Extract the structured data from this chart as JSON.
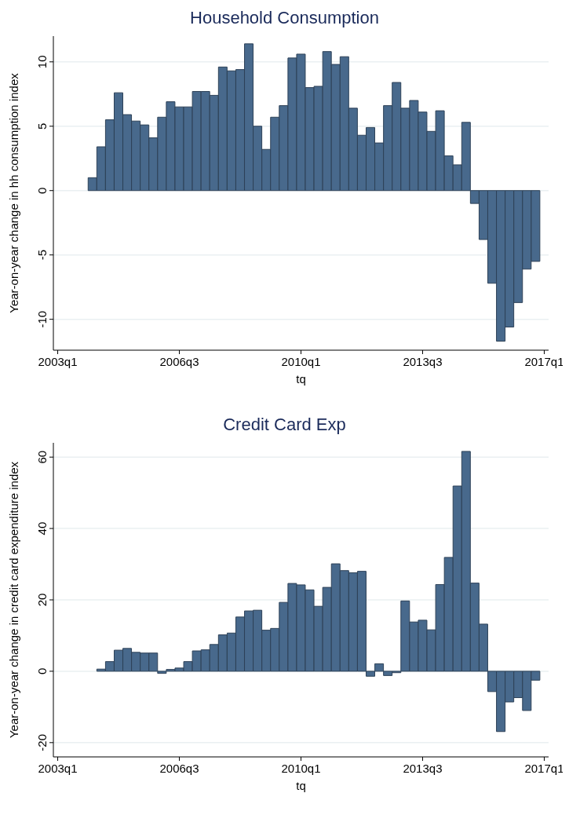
{
  "chart_data": [
    {
      "type": "bar",
      "title": "Household Consumption",
      "xlabel": "tq",
      "ylabel": "Year-on-year change in hh consumption index",
      "categories": [
        "2003q1",
        null,
        null,
        null,
        null,
        null,
        null,
        null,
        null,
        null,
        null,
        null,
        null,
        null,
        "2006q3",
        null,
        null,
        null,
        null,
        null,
        null,
        null,
        null,
        null,
        null,
        null,
        null,
        null,
        "2010q1",
        null,
        null,
        null,
        null,
        null,
        null,
        null,
        null,
        null,
        null,
        null,
        null,
        null,
        "2013q3",
        null,
        null,
        null,
        null,
        null,
        null,
        null,
        null,
        null,
        null,
        null,
        null,
        null,
        "2017q1"
      ],
      "series": [
        {
          "color": "#48698c",
          "values": [
            null,
            null,
            null,
            null,
            1.0,
            3.4,
            5.5,
            7.6,
            5.9,
            5.4,
            5.1,
            4.1,
            5.7,
            6.9,
            6.5,
            6.5,
            7.7,
            7.7,
            7.4,
            9.6,
            9.3,
            9.4,
            11.4,
            5.0,
            3.2,
            5.7,
            6.6,
            10.3,
            10.6,
            8.0,
            8.1,
            10.8,
            9.8,
            10.4,
            6.4,
            4.3,
            4.9,
            3.7,
            6.6,
            8.4,
            6.4,
            7.0,
            6.1,
            4.6,
            6.2,
            2.7,
            2.0,
            5.3,
            -1.0,
            -3.8,
            -7.2,
            -11.7,
            -10.6,
            -8.7,
            -6.1,
            -5.5,
            null
          ]
        }
      ],
      "ylim": [
        -12.4,
        12
      ],
      "yticks": [
        -10,
        -5,
        0,
        5,
        10
      ],
      "grid": "y",
      "legend": false
    },
    {
      "type": "bar",
      "title": "Credit Card Exp",
      "xlabel": "tq",
      "ylabel": "Year-on-year change in credit card expenditure index",
      "categories": [
        "2003q1",
        null,
        null,
        null,
        null,
        null,
        null,
        null,
        null,
        null,
        null,
        null,
        null,
        null,
        "2006q3",
        null,
        null,
        null,
        null,
        null,
        null,
        null,
        null,
        null,
        null,
        null,
        null,
        null,
        "2010q1",
        null,
        null,
        null,
        null,
        null,
        null,
        null,
        null,
        null,
        null,
        null,
        null,
        null,
        "2013q3",
        null,
        null,
        null,
        null,
        null,
        null,
        null,
        null,
        null,
        null,
        null,
        null,
        null,
        "2017q1"
      ],
      "series": [
        {
          "color": "#48698c",
          "values": [
            null,
            null,
            null,
            null,
            null,
            0.6,
            2.7,
            5.9,
            6.4,
            5.3,
            5.1,
            5.1,
            -0.6,
            0.5,
            0.9,
            2.7,
            5.7,
            6.0,
            7.5,
            10.2,
            10.7,
            15.2,
            16.9,
            17.1,
            11.5,
            12.0,
            19.3,
            24.6,
            24.2,
            22.8,
            18.2,
            23.5,
            30.1,
            28.2,
            27.6,
            28.0,
            -1.4,
            2.1,
            -1.2,
            -0.4,
            19.7,
            13.8,
            14.3,
            11.6,
            24.3,
            31.9,
            51.9,
            61.6,
            24.7,
            13.2,
            -5.7,
            -16.9,
            -8.6,
            -7.4,
            -11.0,
            -2.5,
            null
          ]
        }
      ],
      "ylim": [
        -24,
        64
      ],
      "yticks": [
        -20,
        0,
        20,
        40,
        60
      ],
      "grid": "y",
      "legend": false
    }
  ]
}
